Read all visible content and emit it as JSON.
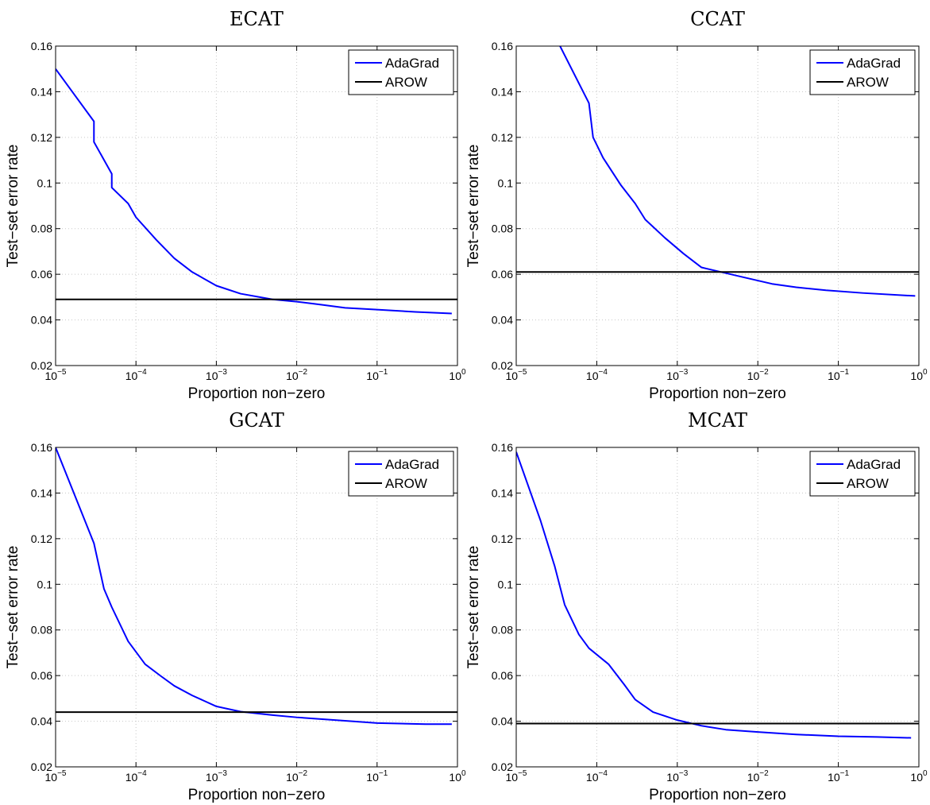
{
  "chart_data": [
    {
      "type": "line",
      "title": "ECAT",
      "xlabel": "Proportion non−zero",
      "ylabel": "Test−set error rate",
      "xscale": "log",
      "xlim": [
        1e-05,
        1
      ],
      "ylim": [
        0.02,
        0.16
      ],
      "grid": true,
      "legend_position": "top-right",
      "x_ticks": [
        {
          "base": "10",
          "exp": "−5",
          "value": 1e-05
        },
        {
          "base": "10",
          "exp": "−4",
          "value": 0.0001
        },
        {
          "base": "10",
          "exp": "−3",
          "value": 0.001
        },
        {
          "base": "10",
          "exp": "−2",
          "value": 0.01
        },
        {
          "base": "10",
          "exp": "−1",
          "value": 0.1
        },
        {
          "base": "10",
          "exp": "0",
          "value": 1
        }
      ],
      "y_ticks": [
        "0.02",
        "0.04",
        "0.06",
        "0.08",
        "0.1",
        "0.12",
        "0.14",
        "0.16"
      ],
      "series": [
        {
          "name": "AdaGrad",
          "color": "#0000ff",
          "type": "line",
          "x": [
            1e-05,
            3e-05,
            3e-05,
            5e-05,
            5e-05,
            8e-05,
            0.0001,
            0.00018,
            0.0003,
            0.0005,
            0.001,
            0.002,
            0.005,
            0.01,
            0.02,
            0.04,
            0.1,
            0.3,
            0.85
          ],
          "y": [
            0.15,
            0.127,
            0.118,
            0.104,
            0.098,
            0.091,
            0.085,
            0.075,
            0.067,
            0.061,
            0.055,
            0.0515,
            0.049,
            0.048,
            0.0467,
            0.0453,
            0.0445,
            0.0435,
            0.0428
          ]
        },
        {
          "name": "AROW",
          "color": "#000000",
          "type": "hline",
          "value": 0.049
        }
      ]
    },
    {
      "type": "line",
      "title": "CCAT",
      "xlabel": "Proportion non−zero",
      "ylabel": "Test−set error rate",
      "xscale": "log",
      "xlim": [
        1e-05,
        1
      ],
      "ylim": [
        0.02,
        0.16
      ],
      "grid": true,
      "legend_position": "top-right",
      "x_ticks": [
        {
          "base": "10",
          "exp": "−5",
          "value": 1e-05
        },
        {
          "base": "10",
          "exp": "−4",
          "value": 0.0001
        },
        {
          "base": "10",
          "exp": "−3",
          "value": 0.001
        },
        {
          "base": "10",
          "exp": "−2",
          "value": 0.01
        },
        {
          "base": "10",
          "exp": "−1",
          "value": 0.1
        },
        {
          "base": "10",
          "exp": "0",
          "value": 1
        }
      ],
      "y_ticks": [
        "0.02",
        "0.04",
        "0.06",
        "0.08",
        "0.1",
        "0.12",
        "0.14",
        "0.16"
      ],
      "series": [
        {
          "name": "AdaGrad",
          "color": "#0000ff",
          "type": "line",
          "x": [
            3.5e-05,
            8e-05,
            9e-05,
            0.00012,
            0.0002,
            0.0003,
            0.0004,
            0.0007,
            0.0012,
            0.002,
            0.004,
            0.007,
            0.015,
            0.03,
            0.07,
            0.2,
            0.9
          ],
          "y": [
            0.16,
            0.135,
            0.12,
            0.111,
            0.099,
            0.091,
            0.084,
            0.076,
            0.069,
            0.063,
            0.0605,
            0.0585,
            0.0558,
            0.0543,
            0.053,
            0.0518,
            0.0505
          ]
        },
        {
          "name": "AROW",
          "color": "#000000",
          "type": "hline",
          "value": 0.061
        }
      ]
    },
    {
      "type": "line",
      "title": "GCAT",
      "xlabel": "Proportion non−zero",
      "ylabel": "Test−set error rate",
      "xscale": "log",
      "xlim": [
        1e-05,
        1
      ],
      "ylim": [
        0.02,
        0.16
      ],
      "grid": true,
      "legend_position": "top-right",
      "x_ticks": [
        {
          "base": "10",
          "exp": "−5",
          "value": 1e-05
        },
        {
          "base": "10",
          "exp": "−4",
          "value": 0.0001
        },
        {
          "base": "10",
          "exp": "−3",
          "value": 0.001
        },
        {
          "base": "10",
          "exp": "−2",
          "value": 0.01
        },
        {
          "base": "10",
          "exp": "−1",
          "value": 0.1
        },
        {
          "base": "10",
          "exp": "0",
          "value": 1
        }
      ],
      "y_ticks": [
        "0.02",
        "0.04",
        "0.06",
        "0.08",
        "0.1",
        "0.12",
        "0.14",
        "0.16"
      ],
      "series": [
        {
          "name": "AdaGrad",
          "color": "#0000ff",
          "type": "line",
          "x": [
            1e-05,
            3e-05,
            4e-05,
            5e-05,
            8e-05,
            0.00013,
            0.0002,
            0.0003,
            0.0005,
            0.001,
            0.002,
            0.005,
            0.01,
            0.03,
            0.1,
            0.4,
            0.85
          ],
          "y": [
            0.16,
            0.118,
            0.098,
            0.09,
            0.075,
            0.065,
            0.06,
            0.0555,
            0.0513,
            0.0465,
            0.0442,
            0.0427,
            0.0417,
            0.0405,
            0.0392,
            0.0387,
            0.0387
          ]
        },
        {
          "name": "AROW",
          "color": "#000000",
          "type": "hline",
          "value": 0.044
        }
      ]
    },
    {
      "type": "line",
      "title": "MCAT",
      "xlabel": "Proportion non−zero",
      "ylabel": "Test−set error rate",
      "xscale": "log",
      "xlim": [
        1e-05,
        1
      ],
      "ylim": [
        0.02,
        0.16
      ],
      "grid": true,
      "legend_position": "top-right",
      "x_ticks": [
        {
          "base": "10",
          "exp": "−5",
          "value": 1e-05
        },
        {
          "base": "10",
          "exp": "−4",
          "value": 0.0001
        },
        {
          "base": "10",
          "exp": "−3",
          "value": 0.001
        },
        {
          "base": "10",
          "exp": "−2",
          "value": 0.01
        },
        {
          "base": "10",
          "exp": "−1",
          "value": 0.1
        },
        {
          "base": "10",
          "exp": "0",
          "value": 1
        }
      ],
      "y_ticks": [
        "0.02",
        "0.04",
        "0.06",
        "0.08",
        "0.1",
        "0.12",
        "0.14",
        "0.16"
      ],
      "series": [
        {
          "name": "AdaGrad",
          "color": "#0000ff",
          "type": "line",
          "x": [
            1e-05,
            2e-05,
            3e-05,
            4e-05,
            6e-05,
            8e-05,
            0.00014,
            0.00022,
            0.0003,
            0.0005,
            0.001,
            0.002,
            0.004,
            0.01,
            0.03,
            0.1,
            0.3,
            0.8
          ],
          "y": [
            0.158,
            0.128,
            0.108,
            0.091,
            0.078,
            0.072,
            0.065,
            0.056,
            0.0495,
            0.044,
            0.0405,
            0.038,
            0.0363,
            0.0353,
            0.0342,
            0.0334,
            0.0331,
            0.0327
          ]
        },
        {
          "name": "AROW",
          "color": "#000000",
          "type": "hline",
          "value": 0.039
        }
      ]
    }
  ]
}
